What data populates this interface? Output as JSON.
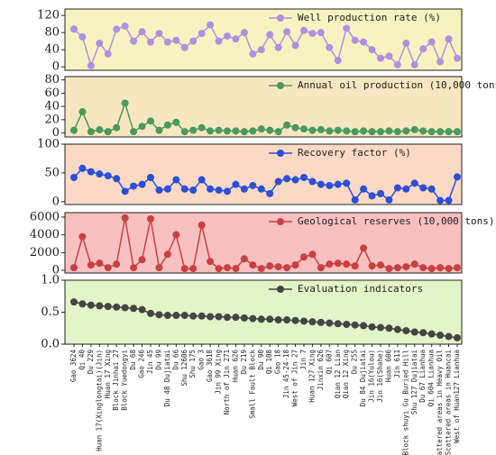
{
  "chart_data": [
    {
      "type": "line",
      "series": [
        {
          "name": "Well production rate (%)",
          "color": "#b38ee0",
          "values": [
            88,
            70,
            3,
            55,
            30,
            88,
            95,
            60,
            82,
            58,
            78,
            58,
            62,
            45,
            60,
            78,
            98,
            60,
            72,
            65,
            80,
            30,
            40,
            75,
            45,
            82,
            50,
            85,
            78,
            80,
            45,
            15,
            90,
            62,
            58,
            40,
            20,
            25,
            5,
            55,
            5,
            42,
            58,
            12,
            65,
            20
          ]
        }
      ],
      "background": "#f7f3c0",
      "ylim": [
        -8,
        135
      ],
      "yticks": [
        0,
        40,
        80,
        120
      ]
    },
    {
      "type": "line",
      "series": [
        {
          "name": "Annual oil production (10,000 tons)",
          "color": "#4a9a5c",
          "values": [
            4,
            32,
            2,
            5,
            2,
            8,
            45,
            2,
            10,
            18,
            4,
            12,
            16,
            2,
            4,
            8,
            3,
            4,
            3,
            3,
            2,
            3,
            6,
            4,
            2,
            12,
            8,
            6,
            4,
            5,
            3,
            4,
            3,
            2,
            3,
            2,
            2,
            3,
            2,
            3,
            5,
            3,
            2,
            2,
            2,
            2
          ]
        }
      ],
      "background": "#f7e7c1",
      "ylim": [
        -6,
        85
      ],
      "yticks": [
        0,
        20,
        40,
        60,
        80
      ]
    },
    {
      "type": "line",
      "series": [
        {
          "name": "Recovery factor (%)",
          "color": "#2c4fd8",
          "values": [
            42,
            58,
            52,
            48,
            45,
            40,
            18,
            27,
            30,
            42,
            20,
            22,
            38,
            22,
            20,
            38,
            22,
            20,
            18,
            30,
            22,
            28,
            22,
            14,
            35,
            40,
            38,
            42,
            35,
            30,
            28,
            30,
            32,
            3,
            22,
            10,
            14,
            3,
            24,
            22,
            32,
            24,
            22,
            2,
            2,
            43
          ]
        }
      ],
      "background": "#fbd9c4",
      "ylim": [
        -5,
        100
      ],
      "yticks": [
        0,
        50,
        100
      ]
    },
    {
      "type": "line",
      "series": [
        {
          "name": "Geological reserves (10,000 tons)",
          "color": "#c84040",
          "values": [
            300,
            3800,
            600,
            800,
            300,
            700,
            5900,
            300,
            1200,
            5800,
            300,
            1800,
            4000,
            200,
            200,
            5100,
            1000,
            200,
            300,
            200,
            1300,
            600,
            200,
            500,
            400,
            300,
            600,
            1500,
            1800,
            300,
            700,
            800,
            700,
            500,
            2500,
            500,
            600,
            200,
            300,
            400,
            700,
            300,
            200,
            300,
            200,
            300
          ]
        }
      ],
      "background": "#f9c0c0",
      "ylim": [
        -300,
        6500
      ],
      "yticks": [
        0,
        2000,
        4000,
        6000
      ]
    },
    {
      "type": "line",
      "series": [
        {
          "name": "Evaluation indicators",
          "color": "#444444",
          "values": [
            0.66,
            0.63,
            0.61,
            0.6,
            0.59,
            0.58,
            0.57,
            0.56,
            0.54,
            0.48,
            0.46,
            0.45,
            0.45,
            0.45,
            0.44,
            0.44,
            0.43,
            0.43,
            0.42,
            0.42,
            0.41,
            0.4,
            0.39,
            0.39,
            0.38,
            0.38,
            0.37,
            0.36,
            0.35,
            0.34,
            0.33,
            0.32,
            0.31,
            0.3,
            0.29,
            0.27,
            0.26,
            0.25,
            0.23,
            0.21,
            0.19,
            0.18,
            0.16,
            0.14,
            0.12,
            0.1
          ]
        }
      ],
      "background": "#e2f5c8",
      "ylim": [
        0,
        1
      ],
      "yticks": [
        {
          "value": 0,
          "label": "0.0"
        },
        {
          "value": 0.5,
          "label": "0.5"
        },
        {
          "value": 1,
          "label": "1.0"
        }
      ],
      "categories": [
        "Gao 3624",
        "Qi 40",
        "Du 229",
        "Huan 17(Xinglongtai)(Jin)",
        "Huan 17 Xing",
        "Block Jinhai 27",
        "Block Yuedongyi",
        "Du 68",
        "Gao 246",
        "Jin 45",
        "Du 99",
        "Du 48 Dujiatai",
        "Du 66",
        "Shu 12606",
        "Shu 175",
        "Gao 3",
        "Gao 3618",
        "Jin 99 Xing",
        "North of Jin 271",
        "Huan 626",
        "Du 219",
        "Small Fault Block",
        "Du 90",
        "Qi 108",
        "Gao 18",
        "Jin 45-24-18",
        "West of Jin 27",
        "Jin 7",
        "Huan 127 Xing",
        "Jinxin 626",
        "Qi 607",
        "Qian 12 Lian",
        "Qian 12 Xing",
        "Du 255",
        "Du 84 Dujiatai",
        "Jin 16(Yulou)",
        "Jin 16(Shahe)",
        "Huan 606",
        "Jin 611",
        "Block shuyi Gu Buried Hill",
        "Shu 127 Dujiatai",
        "Du 67 Lianhua",
        "Qi 604 Lianhua",
        "Scattered areas in Heavy Oil",
        "Scattered areas in Huancai",
        "West of Huan127 Lianhua"
      ]
    }
  ]
}
